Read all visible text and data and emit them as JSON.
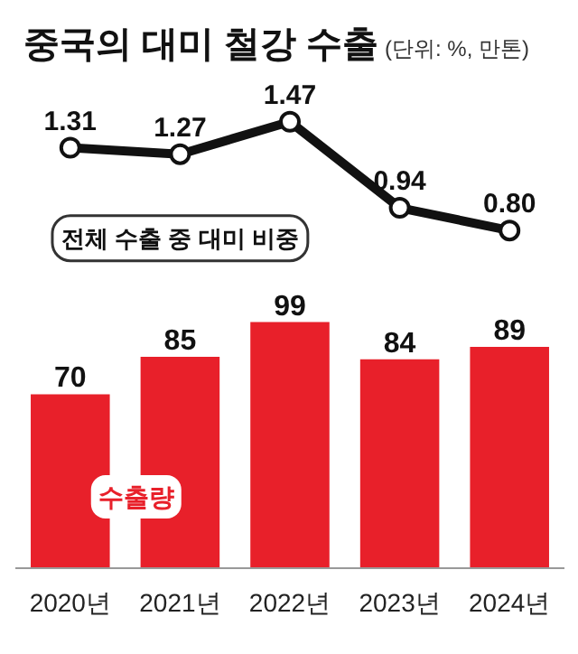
{
  "chart_data": [
    {
      "type": "line",
      "title": "중국의 대미 철강 수출",
      "subtitle": "(단위: %, 만톤)",
      "categories": [
        null,
        null,
        null,
        null,
        null
      ],
      "series": [
        {
          "name": "전체 수출 중 대미 비중",
          "color": "#111111",
          "values": [
            1.31,
            1.27,
            1.47,
            0.94,
            0.8
          ],
          "value_labels": [
            "1.31",
            "1.27",
            "1.47",
            "0.94",
            "0.80"
          ]
        }
      ],
      "tick_labels": false,
      "grid": false,
      "legend": "bottom left",
      "marker": "circle"
    },
    {
      "type": "bar",
      "categories": [
        "2020년",
        "2021년",
        "2022년",
        "2023년",
        "2024년"
      ],
      "series": [
        {
          "name": "수출량",
          "color": "#e8202a",
          "values": [
            70,
            85,
            99,
            84,
            89
          ]
        }
      ],
      "tick_labels": "x",
      "data_labels": true,
      "grid": false
    }
  ]
}
